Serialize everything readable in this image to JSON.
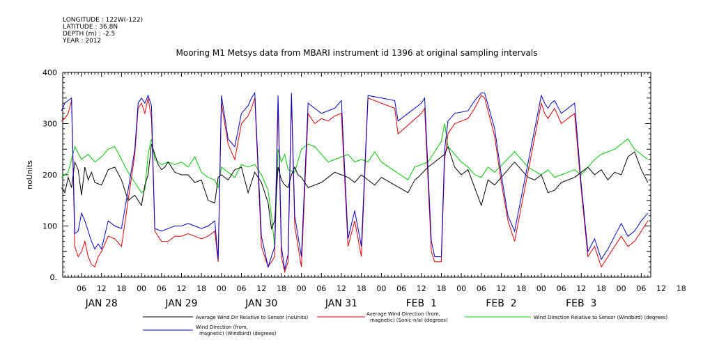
{
  "header": {
    "meta_lines": [
      "LONGITUDE : 122W(-122)",
      "LATITUDE : 36.8N",
      "DEPTH (m) : -2.5",
      "YEAR : 2012"
    ],
    "title": "Mooring M1 Metsys data from MBARI instrument id 1396 at original sampling intervals"
  },
  "chart_data": {
    "type": "line",
    "title": "Mooring M1 Metsys data from MBARI instrument id 1396 at original sampling intervals",
    "ylabel": "noUnits",
    "xlabel": "",
    "ylim": [
      0,
      400
    ],
    "y_ticks": [
      0,
      100,
      200,
      300,
      400
    ],
    "y_tick_labels": [
      "0.",
      "100",
      "200",
      "300",
      "400"
    ],
    "xlim_hours": [
      0,
      176.5
    ],
    "x_unit": "hours after 00:00 28-JAN-2012",
    "hour_tick_labels": [
      "06",
      "12",
      "18",
      "00",
      "06",
      "12",
      "18",
      "00",
      "06",
      "12",
      "18",
      "00",
      "06",
      "12",
      "18",
      "00",
      "06",
      "12",
      "18",
      "00",
      "06",
      "12",
      "18",
      "00",
      "06",
      "12",
      "18",
      "00",
      "06",
      "12",
      "18"
    ],
    "day_labels": [
      "JAN 28",
      "JAN 29",
      "JAN 30",
      "JAN 31",
      "FEB  1",
      "FEB  2",
      "FEB  3"
    ],
    "series": [
      {
        "name": "Average Wind Dir Relative to Sensor (noUnits)",
        "color": "#000000",
        "x": [
          0,
          1,
          2,
          3,
          4,
          5,
          6,
          7,
          8,
          9,
          10,
          12,
          14,
          16,
          18,
          20,
          22,
          24,
          25,
          26,
          27,
          28,
          29,
          30,
          31,
          32,
          34,
          36,
          38,
          40,
          42,
          44,
          46,
          47,
          48,
          50,
          52,
          54,
          56,
          58,
          60,
          62,
          63,
          64,
          65,
          66,
          67,
          68,
          69,
          70,
          71,
          72,
          74,
          76,
          78,
          80,
          82,
          84,
          86,
          88,
          90,
          92,
          94,
          96,
          104,
          106,
          107,
          110,
          115,
          116,
          118,
          120,
          122,
          124,
          126,
          128,
          130,
          136,
          140,
          142,
          144,
          146,
          148,
          150,
          152,
          154,
          156,
          158,
          160,
          162,
          164,
          166,
          168,
          170,
          172,
          174,
          176
        ],
        "y": [
          175,
          165,
          195,
          175,
          225,
          210,
          160,
          215,
          190,
          205,
          185,
          180,
          210,
          215,
          190,
          150,
          160,
          140,
          180,
          200,
          260,
          240,
          220,
          210,
          215,
          225,
          205,
          200,
          200,
          185,
          190,
          150,
          145,
          195,
          200,
          190,
          210,
          215,
          165,
          205,
          185,
          145,
          95,
          110,
          215,
          190,
          180,
          175,
          200,
          215,
          200,
          195,
          175,
          180,
          185,
          195,
          205,
          200,
          195,
          185,
          200,
          190,
          180,
          195,
          165,
          190,
          195,
          215,
          240,
          255,
          215,
          200,
          210,
          175,
          140,
          190,
          180,
          225,
          195,
          190,
          200,
          165,
          170,
          185,
          190,
          195,
          205,
          215,
          200,
          210,
          190,
          205,
          200,
          235,
          245,
          210,
          185
        ]
      },
      {
        "name": "Average Wind Direction (from, magnetic) (Sonic-n/a) (degrees)",
        "color": "#dd0000",
        "x": [
          0,
          1,
          2,
          3,
          4,
          5,
          6,
          7,
          8,
          9,
          10,
          11,
          12,
          14,
          16,
          18,
          20,
          22,
          23,
          24,
          25,
          26,
          27,
          28,
          30,
          32,
          34,
          36,
          38,
          40,
          42,
          44,
          46,
          47,
          48,
          50,
          52,
          54,
          56,
          57,
          58,
          60,
          62,
          64,
          65,
          66,
          67,
          68,
          69,
          70,
          72,
          74,
          76,
          78,
          80,
          82,
          84,
          86,
          88,
          90,
          92,
          100,
          101,
          108,
          109,
          111,
          112,
          114,
          115,
          116,
          118,
          122,
          124,
          126,
          127,
          130,
          132,
          134,
          136,
          144,
          145,
          146,
          147,
          148,
          150,
          152,
          154,
          156,
          158,
          160,
          162,
          164,
          166,
          168,
          170,
          172,
          174,
          176
        ],
        "y": [
          305,
          310,
          320,
          345,
          60,
          40,
          50,
          70,
          40,
          25,
          20,
          40,
          50,
          80,
          75,
          60,
          150,
          240,
          330,
          340,
          320,
          350,
          310,
          90,
          70,
          70,
          80,
          80,
          85,
          80,
          75,
          80,
          90,
          30,
          340,
          260,
          230,
          300,
          315,
          330,
          350,
          60,
          20,
          40,
          340,
          40,
          10,
          30,
          350,
          100,
          20,
          320,
          300,
          310,
          305,
          315,
          320,
          60,
          110,
          40,
          350,
          330,
          280,
          320,
          330,
          50,
          30,
          30,
          230,
          280,
          300,
          310,
          330,
          355,
          350,
          275,
          185,
          110,
          70,
          340,
          320,
          310,
          320,
          330,
          300,
          310,
          320,
          170,
          40,
          60,
          20,
          40,
          60,
          80,
          60,
          70,
          90,
          110
        ]
      },
      {
        "name": "Wind Direction Relative to Sensor (Windbird) (degrees)",
        "color": "#00cc00",
        "x": [
          0,
          2,
          4,
          6,
          8,
          10,
          12,
          14,
          16,
          18,
          20,
          22,
          24,
          25,
          26,
          27,
          28,
          30,
          32,
          34,
          36,
          38,
          40,
          42,
          44,
          46,
          47,
          48,
          50,
          52,
          54,
          56,
          58,
          60,
          62,
          63,
          64,
          65,
          66,
          67,
          68,
          70,
          72,
          74,
          76,
          78,
          80,
          82,
          84,
          86,
          88,
          90,
          92,
          94,
          96,
          104,
          106,
          110,
          114,
          115,
          116,
          118,
          120,
          122,
          124,
          126,
          128,
          130,
          136,
          140,
          144,
          146,
          148,
          150,
          152,
          154,
          156,
          158,
          160,
          162,
          164,
          166,
          168,
          170,
          172,
          174,
          176
        ],
        "y": [
          195,
          205,
          255,
          230,
          240,
          225,
          235,
          250,
          255,
          230,
          205,
          185,
          165,
          170,
          240,
          270,
          230,
          220,
          225,
          220,
          225,
          215,
          235,
          205,
          195,
          190,
          175,
          215,
          205,
          195,
          220,
          215,
          220,
          200,
          170,
          120,
          60,
          250,
          225,
          240,
          210,
          205,
          250,
          260,
          255,
          240,
          225,
          230,
          235,
          240,
          225,
          230,
          225,
          245,
          225,
          190,
          215,
          225,
          265,
          300,
          255,
          240,
          225,
          215,
          200,
          195,
          215,
          205,
          245,
          215,
          200,
          210,
          195,
          200,
          205,
          210,
          200,
          215,
          230,
          240,
          245,
          250,
          260,
          270,
          250,
          240,
          230
        ]
      },
      {
        "name": "Wind Direction (from, magnetic) (Windbird) (degrees)",
        "color": "#0000cc",
        "x": [
          0,
          1,
          2,
          3,
          4,
          5,
          6,
          7,
          8,
          9,
          10,
          11,
          12,
          14,
          16,
          18,
          20,
          22,
          23,
          24,
          25,
          26,
          27,
          28,
          30,
          32,
          34,
          36,
          38,
          40,
          42,
          44,
          46,
          47,
          48,
          50,
          52,
          54,
          56,
          57,
          58,
          60,
          62,
          64,
          65,
          66,
          67,
          68,
          69,
          70,
          72,
          74,
          76,
          78,
          80,
          82,
          84,
          86,
          88,
          90,
          92,
          100,
          101,
          108,
          109,
          111,
          112,
          114,
          115,
          116,
          118,
          122,
          124,
          126,
          127,
          130,
          132,
          134,
          136,
          144,
          145,
          146,
          147,
          148,
          150,
          152,
          154,
          156,
          158,
          160,
          162,
          164,
          166,
          168,
          170,
          172,
          174,
          176
        ],
        "y": [
          325,
          340,
          345,
          350,
          85,
          90,
          125,
          110,
          90,
          70,
          55,
          65,
          55,
          110,
          100,
          95,
          170,
          250,
          340,
          350,
          340,
          355,
          335,
          95,
          90,
          95,
          100,
          100,
          105,
          100,
          95,
          100,
          110,
          35,
          355,
          270,
          255,
          320,
          335,
          350,
          360,
          80,
          20,
          60,
          355,
          60,
          15,
          45,
          360,
          120,
          40,
          340,
          330,
          320,
          325,
          330,
          345,
          75,
          130,
          60,
          355,
          345,
          305,
          340,
          350,
          70,
          40,
          40,
          250,
          305,
          320,
          325,
          345,
          360,
          360,
          290,
          200,
          120,
          90,
          355,
          340,
          330,
          340,
          345,
          320,
          330,
          340,
          180,
          50,
          75,
          35,
          55,
          80,
          105,
          80,
          90,
          110,
          125
        ]
      }
    ]
  },
  "legend": {
    "items": [
      {
        "line1": "Average Wind Dir Relative to Sensor (noUnits)",
        "line2": "",
        "color": "#000000"
      },
      {
        "line1": "Average Wind Direction (from,",
        "line2": "magnetic) (Sonic-n/a) (degrees)",
        "color": "#dd0000"
      },
      {
        "line1": "Wind Direction Relative to Sensor (Windbird) (degrees)",
        "line2": "",
        "color": "#00cc00"
      },
      {
        "line1": "Wind Direction (from,",
        "line2": "magnetic) (Windbird) (degrees)",
        "color": "#0000cc"
      }
    ]
  }
}
